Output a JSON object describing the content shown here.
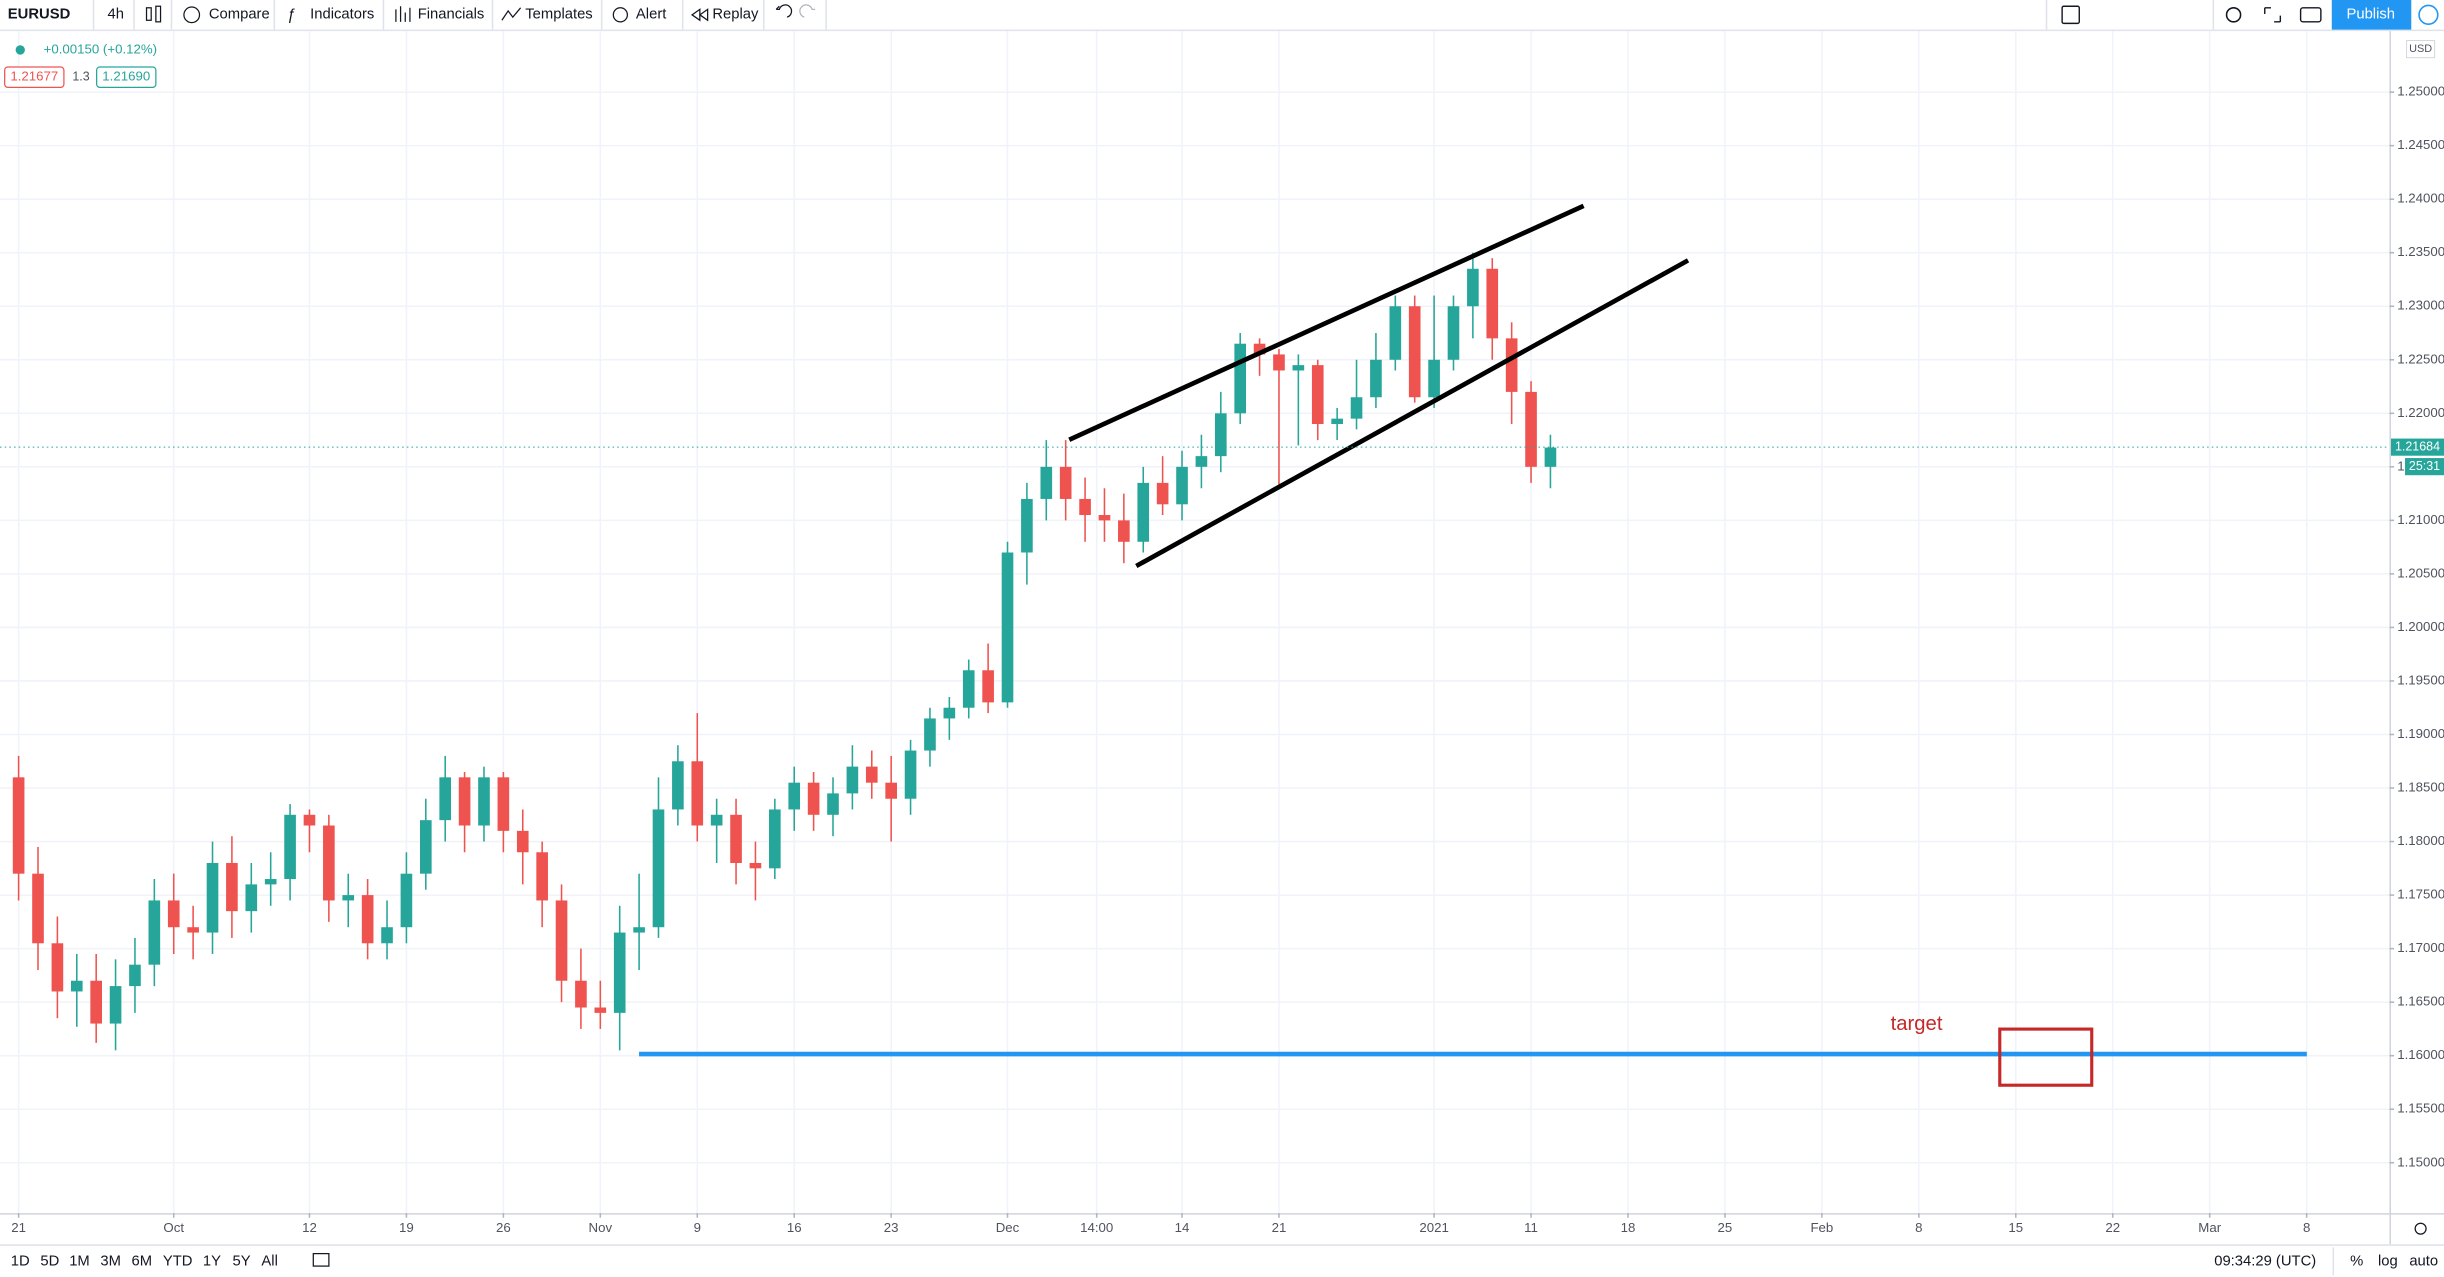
{
  "toolbar": {
    "symbol": "EURUSD",
    "interval": "4h",
    "items": [
      "Compare",
      "Indicators",
      "Financials",
      "Templates",
      "Alert",
      "Replay"
    ],
    "publish": "Publish"
  },
  "legend": {
    "change": "+0.00150 (+0.12%)",
    "bid": "1.21677",
    "spread": "1.3",
    "ask": "1.21690"
  },
  "annotation": {
    "text": "target"
  },
  "bottom_bar": {
    "ranges": [
      "1D",
      "5D",
      "1M",
      "3M",
      "6M",
      "YTD",
      "1Y",
      "5Y",
      "All"
    ],
    "clock": "09:34:29 (UTC)",
    "percent": "%",
    "log": "log",
    "auto": "auto"
  },
  "chart_data": {
    "type": "candlestick",
    "currency": "USD",
    "last_price": 1.21684,
    "countdown": "25:31",
    "up_color": "#26a69a",
    "down_color": "#ef5350",
    "grid": true,
    "xlim": [
      -0.96,
      122.27
    ],
    "ylim": [
      1.1453,
      1.2554
    ],
    "xticks": [
      {
        "value": 0,
        "label": "21"
      },
      {
        "value": 8,
        "label": "Oct"
      },
      {
        "value": 15,
        "label": "12"
      },
      {
        "value": 20,
        "label": "19"
      },
      {
        "value": 25,
        "label": "26"
      },
      {
        "value": 30,
        "label": "Nov"
      },
      {
        "value": 35,
        "label": "9"
      },
      {
        "value": 40,
        "label": "16"
      },
      {
        "value": 45,
        "label": "23"
      },
      {
        "value": 51,
        "label": "Dec"
      },
      {
        "value": 55.6,
        "label": "14:00"
      },
      {
        "value": 60,
        "label": "14"
      },
      {
        "value": 65,
        "label": "21"
      },
      {
        "value": 73,
        "label": "2021"
      },
      {
        "value": 78,
        "label": "11"
      },
      {
        "value": 83,
        "label": "18"
      },
      {
        "value": 88,
        "label": "25"
      },
      {
        "value": 93,
        "label": "Feb"
      },
      {
        "value": 98,
        "label": "8"
      },
      {
        "value": 103,
        "label": "15"
      },
      {
        "value": 108,
        "label": "22"
      },
      {
        "value": 113,
        "label": "Mar"
      },
      {
        "value": 118,
        "label": "8"
      }
    ],
    "yticks": [
      {
        "value": 1.15,
        "label": "1.15000"
      },
      {
        "value": 1.155,
        "label": "1.15500"
      },
      {
        "value": 1.16,
        "label": "1.16000"
      },
      {
        "value": 1.165,
        "label": "1.16500"
      },
      {
        "value": 1.17,
        "label": "1.17000"
      },
      {
        "value": 1.175,
        "label": "1.17500"
      },
      {
        "value": 1.18,
        "label": "1.18000"
      },
      {
        "value": 1.185,
        "label": "1.18500"
      },
      {
        "value": 1.19,
        "label": "1.19000"
      },
      {
        "value": 1.195,
        "label": "1.19500"
      },
      {
        "value": 1.2,
        "label": "1.20000"
      },
      {
        "value": 1.205,
        "label": "1.20500"
      },
      {
        "value": 1.21,
        "label": "1.21000"
      },
      {
        "value": 1.215,
        "label": "1.21500"
      },
      {
        "value": 1.22,
        "label": "1.22000"
      },
      {
        "value": 1.225,
        "label": "1.22500"
      },
      {
        "value": 1.23,
        "label": "1.23000"
      },
      {
        "value": 1.235,
        "label": "1.23500"
      },
      {
        "value": 1.24,
        "label": "1.24000"
      },
      {
        "value": 1.245,
        "label": "1.24500"
      },
      {
        "value": 1.25,
        "label": "1.25000"
      }
    ],
    "x": [
      0,
      1,
      2,
      3,
      4,
      5,
      6,
      7,
      8,
      9,
      10,
      11,
      12,
      13,
      14,
      15,
      16,
      17,
      18,
      19,
      20,
      21,
      22,
      23,
      24,
      25,
      26,
      27,
      28,
      29,
      30,
      31,
      32,
      33,
      34,
      35,
      36,
      37,
      38,
      39,
      40,
      41,
      42,
      43,
      44,
      45,
      46,
      47,
      48,
      49,
      50,
      51,
      52,
      53,
      54,
      55,
      56,
      57,
      58,
      59,
      60,
      61,
      62,
      63,
      64,
      65,
      66,
      67,
      68,
      69,
      70,
      71,
      72,
      73,
      74,
      75,
      76,
      77,
      78,
      79
    ],
    "open": [
      1.186,
      1.177,
      1.1705,
      1.166,
      1.167,
      1.163,
      1.1665,
      1.1685,
      1.1745,
      1.172,
      1.1715,
      1.178,
      1.1735,
      1.176,
      1.1765,
      1.1825,
      1.1815,
      1.1745,
      1.175,
      1.1705,
      1.172,
      1.177,
      1.182,
      1.186,
      1.1815,
      1.186,
      1.181,
      1.179,
      1.1745,
      1.167,
      1.1645,
      1.164,
      1.1715,
      1.172,
      1.183,
      1.1875,
      1.1815,
      1.1825,
      1.178,
      1.1775,
      1.183,
      1.1855,
      1.1825,
      1.1845,
      1.187,
      1.1855,
      1.184,
      1.1885,
      1.1915,
      1.1925,
      1.196,
      1.193,
      1.207,
      1.212,
      1.215,
      1.212,
      1.2105,
      1.21,
      1.208,
      1.2135,
      1.2115,
      1.215,
      1.216,
      1.22,
      1.2265,
      1.2255,
      1.224,
      1.2245,
      1.219,
      1.2195,
      1.2215,
      1.225,
      1.23,
      1.2215,
      1.225,
      1.23,
      1.2335,
      1.227,
      1.222,
      1.215
    ],
    "high": [
      1.188,
      1.1795,
      1.173,
      1.1695,
      1.1695,
      1.169,
      1.171,
      1.1765,
      1.177,
      1.174,
      1.18,
      1.1805,
      1.178,
      1.179,
      1.1835,
      1.183,
      1.1825,
      1.177,
      1.1765,
      1.1745,
      1.179,
      1.184,
      1.188,
      1.1865,
      1.187,
      1.1865,
      1.183,
      1.18,
      1.176,
      1.17,
      1.167,
      1.174,
      1.177,
      1.186,
      1.189,
      1.192,
      1.184,
      1.184,
      1.18,
      1.184,
      1.187,
      1.1865,
      1.186,
      1.189,
      1.1885,
      1.188,
      1.1895,
      1.1925,
      1.1935,
      1.197,
      1.1985,
      1.208,
      1.2135,
      1.2175,
      1.2175,
      1.214,
      1.213,
      1.2125,
      1.215,
      1.216,
      1.2165,
      1.218,
      1.222,
      1.2275,
      1.227,
      1.226,
      1.2255,
      1.225,
      1.2205,
      1.225,
      1.2275,
      1.231,
      1.231,
      1.231,
      1.231,
      1.235,
      1.2345,
      1.2285,
      1.223,
      1.218
    ],
    "low": [
      1.1745,
      1.168,
      1.1635,
      1.1627,
      1.1612,
      1.1605,
      1.164,
      1.1665,
      1.1695,
      1.169,
      1.1695,
      1.171,
      1.1715,
      1.174,
      1.1745,
      1.179,
      1.1725,
      1.172,
      1.169,
      1.169,
      1.1705,
      1.1755,
      1.18,
      1.179,
      1.18,
      1.179,
      1.176,
      1.172,
      1.165,
      1.1625,
      1.1625,
      1.1605,
      1.168,
      1.171,
      1.1815,
      1.18,
      1.178,
      1.176,
      1.1745,
      1.1765,
      1.181,
      1.181,
      1.1805,
      1.183,
      1.184,
      1.18,
      1.1825,
      1.187,
      1.1895,
      1.1915,
      1.192,
      1.1925,
      1.204,
      1.21,
      1.21,
      1.208,
      1.208,
      1.206,
      1.207,
      1.2105,
      1.21,
      1.213,
      1.2145,
      1.219,
      1.2235,
      1.213,
      1.217,
      1.2175,
      1.2175,
      1.2185,
      1.2205,
      1.224,
      1.221,
      1.2205,
      1.224,
      1.227,
      1.225,
      1.219,
      1.2135,
      1.213
    ],
    "close": [
      1.177,
      1.1705,
      1.166,
      1.167,
      1.163,
      1.1665,
      1.1685,
      1.1745,
      1.172,
      1.1715,
      1.178,
      1.1735,
      1.176,
      1.1765,
      1.1825,
      1.1815,
      1.1745,
      1.175,
      1.1705,
      1.172,
      1.177,
      1.182,
      1.186,
      1.1815,
      1.186,
      1.181,
      1.179,
      1.1745,
      1.167,
      1.1645,
      1.164,
      1.1715,
      1.172,
      1.183,
      1.1875,
      1.1815,
      1.1825,
      1.178,
      1.1775,
      1.183,
      1.1855,
      1.1825,
      1.1845,
      1.187,
      1.1855,
      1.184,
      1.1885,
      1.1915,
      1.1925,
      1.196,
      1.193,
      1.207,
      1.212,
      1.215,
      1.212,
      1.2105,
      1.21,
      1.208,
      1.2135,
      1.2115,
      1.215,
      1.216,
      1.22,
      1.2265,
      1.2255,
      1.224,
      1.2245,
      1.219,
      1.2195,
      1.2215,
      1.225,
      1.23,
      1.2215,
      1.225,
      1.23,
      1.2335,
      1.227,
      1.222,
      1.215,
      1.2168
    ]
  }
}
